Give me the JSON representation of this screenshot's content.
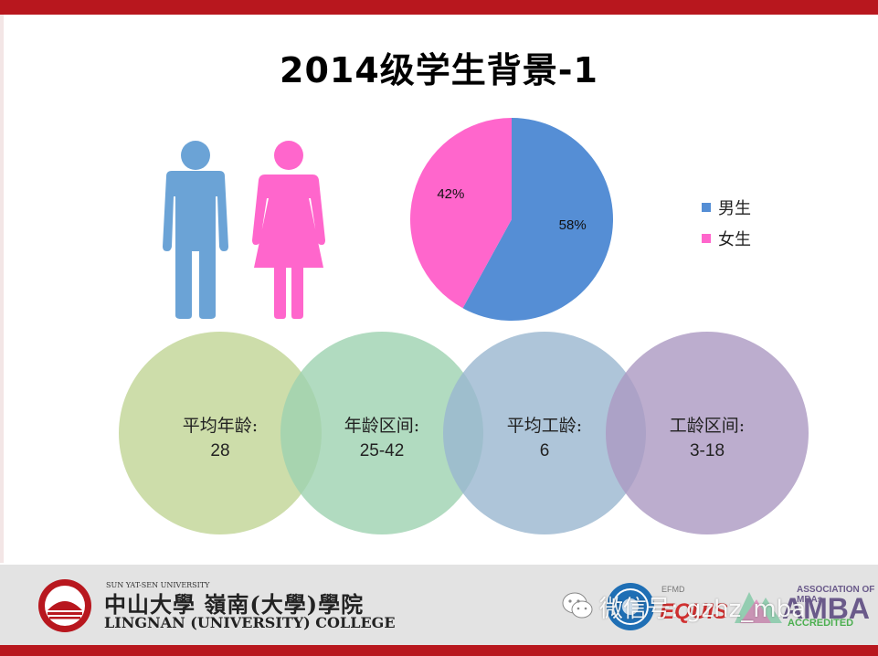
{
  "slide": {
    "title": "2014级学生背景-1"
  },
  "chart_data": {
    "type": "pie",
    "title": "",
    "slices": [
      {
        "label": "男生",
        "value": 58,
        "display": "58%",
        "color": "#558ed5"
      },
      {
        "label": "女生",
        "value": 42,
        "display": "42%",
        "color": "#ff66cc"
      }
    ],
    "legend_position": "right"
  },
  "figures": {
    "male_icon": "male-person-icon",
    "female_icon": "female-person-icon",
    "male_color": "#6ba3d6",
    "female_color": "#ff66cc"
  },
  "stats": [
    {
      "label": "平均年龄:",
      "value": "28",
      "color": "#c4d79b"
    },
    {
      "label": "年龄区间:",
      "value": "25-42",
      "color": "#a9d8b8"
    },
    {
      "label": "平均工龄:",
      "value": "6",
      "color": "#a6c0d6"
    },
    {
      "label": "工龄区间:",
      "value": "3-18",
      "color": "#b3a2c7"
    }
  ],
  "footer": {
    "uni_small": "SUN YAT-SEN UNIVERSITY",
    "uni_cn": "中山大學 嶺南(大學)學院",
    "uni_en": "LINGNAN (UNIVERSITY) COLLEGE",
    "equis_small": "EFMD",
    "equis_big": "EQUIS",
    "amba_assoc": "ASSOCIATION OF MBAs",
    "amba_big": "AMBA",
    "amba_acc": "ACCREDITED",
    "watermark": "微信号: gzhz_mba",
    "brand_red": "#b8171e"
  }
}
